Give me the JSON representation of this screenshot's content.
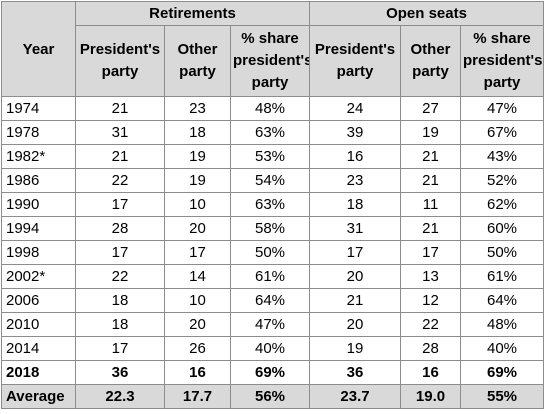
{
  "table": {
    "group_headers": [
      "Retirements",
      "Open seats"
    ],
    "year_header": "Year",
    "sub_headers": [
      "President's party",
      "Other party",
      "% share president's party",
      "President's party",
      "Other party",
      "% share president's party"
    ],
    "rows": [
      [
        "1974",
        "21",
        "23",
        "48%",
        "24",
        "27",
        "47%"
      ],
      [
        "1978",
        "31",
        "18",
        "63%",
        "39",
        "19",
        "67%"
      ],
      [
        "1982*",
        "21",
        "19",
        "53%",
        "16",
        "21",
        "43%"
      ],
      [
        "1986",
        "22",
        "19",
        "54%",
        "23",
        "21",
        "52%"
      ],
      [
        "1990",
        "17",
        "10",
        "63%",
        "18",
        "11",
        "62%"
      ],
      [
        "1994",
        "28",
        "20",
        "58%",
        "31",
        "21",
        "60%"
      ],
      [
        "1998",
        "17",
        "17",
        "50%",
        "17",
        "17",
        "50%"
      ],
      [
        "2002*",
        "22",
        "14",
        "61%",
        "20",
        "13",
        "61%"
      ],
      [
        "2006",
        "18",
        "10",
        "64%",
        "21",
        "12",
        "64%"
      ],
      [
        "2010",
        "18",
        "20",
        "47%",
        "20",
        "22",
        "48%"
      ],
      [
        "2014",
        "17",
        "26",
        "40%",
        "19",
        "28",
        "40%"
      ],
      [
        "2018",
        "36",
        "16",
        "69%",
        "36",
        "16",
        "69%"
      ],
      [
        "Average",
        "22.3",
        "17.7",
        "56%",
        "23.7",
        "19.0",
        "55%"
      ]
    ],
    "colors": {
      "header_fill": "#d9d9d9",
      "border": "#8c8c8c",
      "text": "#000000"
    }
  }
}
